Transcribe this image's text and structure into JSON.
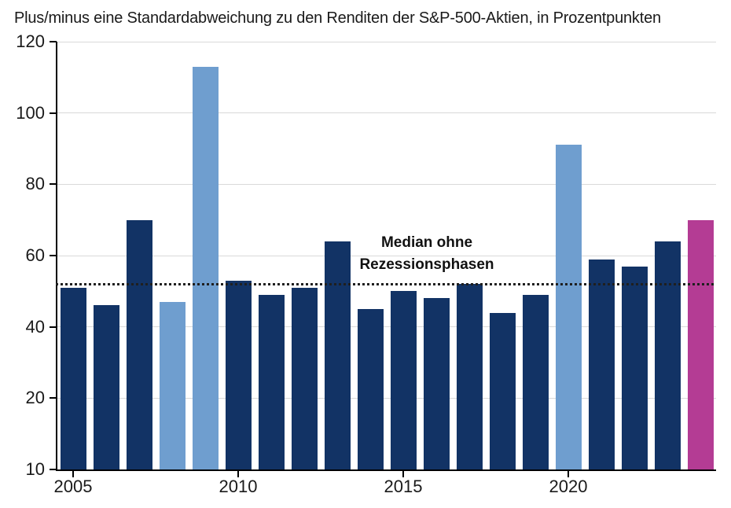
{
  "title": "Plus/minus eine Standardabweichung zu den Renditen der S&P-500-Aktien, in Prozentpunkten",
  "chart_data": {
    "type": "bar",
    "categories": [
      2005,
      2006,
      2007,
      2008,
      2009,
      2010,
      2011,
      2012,
      2013,
      2014,
      2015,
      2016,
      2017,
      2018,
      2019,
      2020,
      2021,
      2022,
      2023,
      2024
    ],
    "values": [
      51,
      46,
      70,
      47,
      113,
      53,
      49,
      51,
      64,
      45,
      50,
      48,
      52,
      44,
      49,
      91,
      59,
      57,
      64,
      70
    ],
    "bar_types": [
      "normal",
      "normal",
      "normal",
      "recession",
      "recession",
      "normal",
      "normal",
      "normal",
      "normal",
      "normal",
      "normal",
      "normal",
      "normal",
      "normal",
      "normal",
      "recession",
      "normal",
      "normal",
      "normal",
      "highlight"
    ],
    "title": "Plus/minus eine Standardabweichung zu den Renditen der S&P-500-Aktien, in Prozentpunkten",
    "xlabel": "",
    "ylabel": "",
    "ylim": [
      10,
      120
    ],
    "grid": true,
    "legend": false,
    "y_axis": {
      "tick_labels": [
        "120",
        "100",
        "80",
        "60",
        "40",
        "20",
        "10"
      ],
      "tick_values": [
        120,
        100,
        80,
        60,
        40,
        20,
        10
      ],
      "gridline_values": [
        120,
        100,
        80,
        60,
        40,
        20
      ]
    },
    "x_axis": {
      "tick_labels": [
        "2005",
        "2010",
        "2015",
        "2020"
      ],
      "tick_years": [
        2005,
        2010,
        2015,
        2020
      ]
    },
    "median_line": {
      "value": 52,
      "label_line1": "Median ohne",
      "label_line2": "Rezessionsphasen"
    },
    "colors": {
      "bar_normal": "#123365",
      "bar_recession": "#6F9ECF",
      "bar_highlight": "#B43C94",
      "gridline": "#D9D9D9",
      "axis": "#000000",
      "median_line": "#1F1F1F",
      "text": "#1A1A1A"
    }
  }
}
